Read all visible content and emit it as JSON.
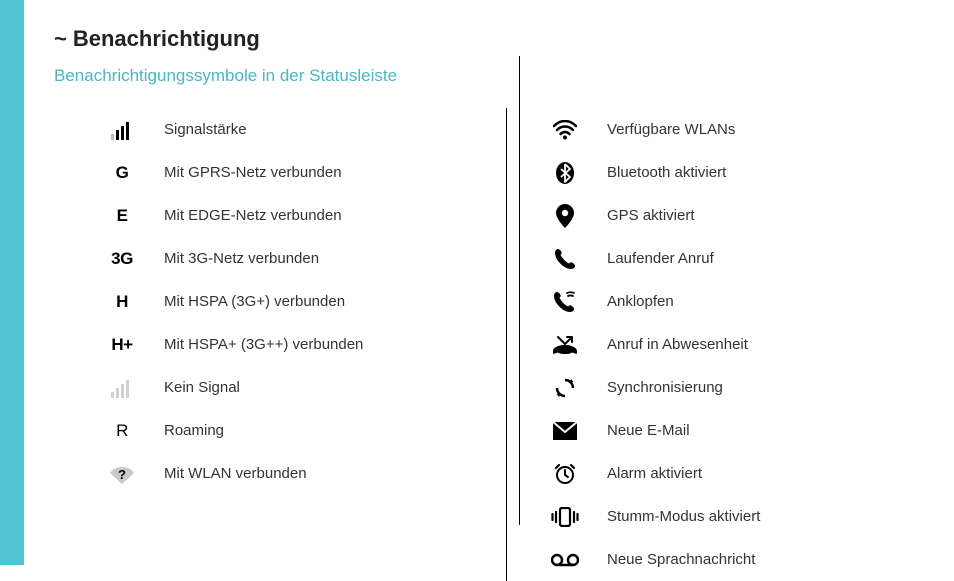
{
  "accent_color": "#4fc5d6",
  "subtitle_color": "#49b6c4",
  "text_color": "#333333",
  "icon_color": "#000000",
  "title_prefix": "~",
  "title": "Benachrichtigung",
  "subtitle": "Benachrichtigungssymbole in der Statusleiste",
  "left_items": [
    {
      "icon": "signal-full",
      "label": "Signalstärke"
    },
    {
      "icon": "text",
      "text": "G",
      "label": "Mit GPRS-Netz verbunden"
    },
    {
      "icon": "text",
      "text": "E",
      "label": "Mit EDGE-Netz verbunden"
    },
    {
      "icon": "text",
      "text": "3G",
      "label": "Mit 3G-Netz verbunden"
    },
    {
      "icon": "text",
      "text": "H",
      "label": "Mit HSPA (3G+) verbunden"
    },
    {
      "icon": "text",
      "text": "H+",
      "label": "Mit HSPA+ (3G++) verbunden"
    },
    {
      "icon": "signal-empty",
      "label": "Kein Signal"
    },
    {
      "icon": "text-light",
      "text": "R",
      "label": "Roaming"
    },
    {
      "icon": "wifi-question",
      "label": "Mit WLAN verbunden"
    }
  ],
  "right_items": [
    {
      "icon": "wifi",
      "label": "Verfügbare WLANs"
    },
    {
      "icon": "bluetooth",
      "label": "Bluetooth aktiviert"
    },
    {
      "icon": "gps",
      "label": "GPS aktiviert"
    },
    {
      "icon": "phone",
      "label": "Laufender Anruf"
    },
    {
      "icon": "call-waiting",
      "label": "Anklopfen"
    },
    {
      "icon": "missed-call",
      "label": "Anruf in Abwesenheit"
    },
    {
      "icon": "sync",
      "label": "Synchronisierung"
    },
    {
      "icon": "email",
      "label": "Neue E-Mail"
    },
    {
      "icon": "alarm",
      "label": "Alarm aktiviert"
    },
    {
      "icon": "vibrate",
      "label": "Stumm-Modus aktiviert"
    },
    {
      "icon": "voicemail",
      "label": "Neue Sprachnachricht"
    }
  ]
}
